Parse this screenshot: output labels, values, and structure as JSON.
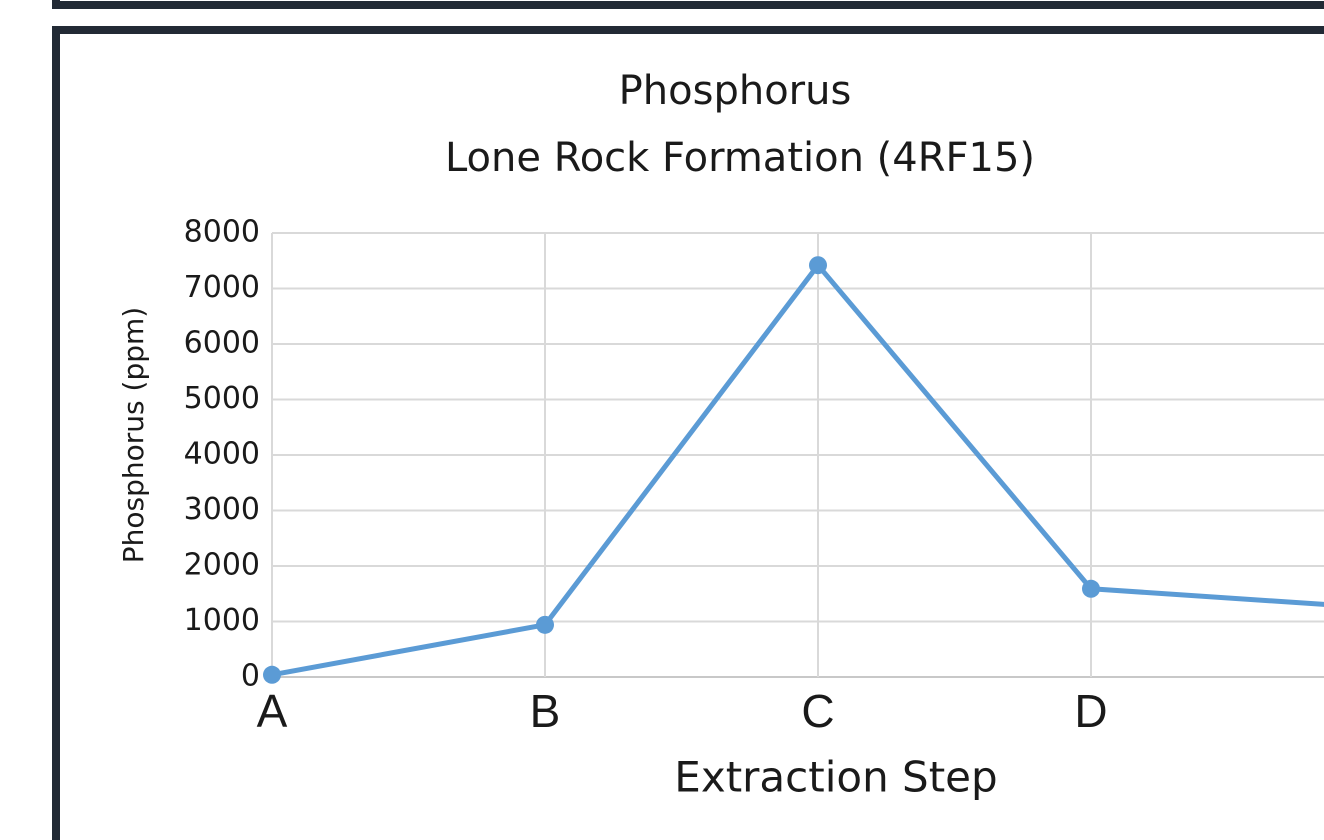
{
  "chart_data": {
    "type": "line",
    "title": "Phosphorus",
    "subtitle": "Lone Rock Formation (4RF15)",
    "x_label": "Extraction Step",
    "y_label": "Phosphorus (ppm)",
    "categories": [
      "A",
      "B",
      "C",
      "D",
      null
    ],
    "series": [
      {
        "name": "Phosphorus",
        "color": "#5b9bd5",
        "values": [
          40,
          940,
          7420,
          1590,
          1260
        ]
      }
    ],
    "ylim": [
      0,
      8000
    ],
    "yticks": [
      0,
      1000,
      2000,
      3000,
      4000,
      5000,
      6000,
      7000,
      8000
    ],
    "grid": true
  }
}
